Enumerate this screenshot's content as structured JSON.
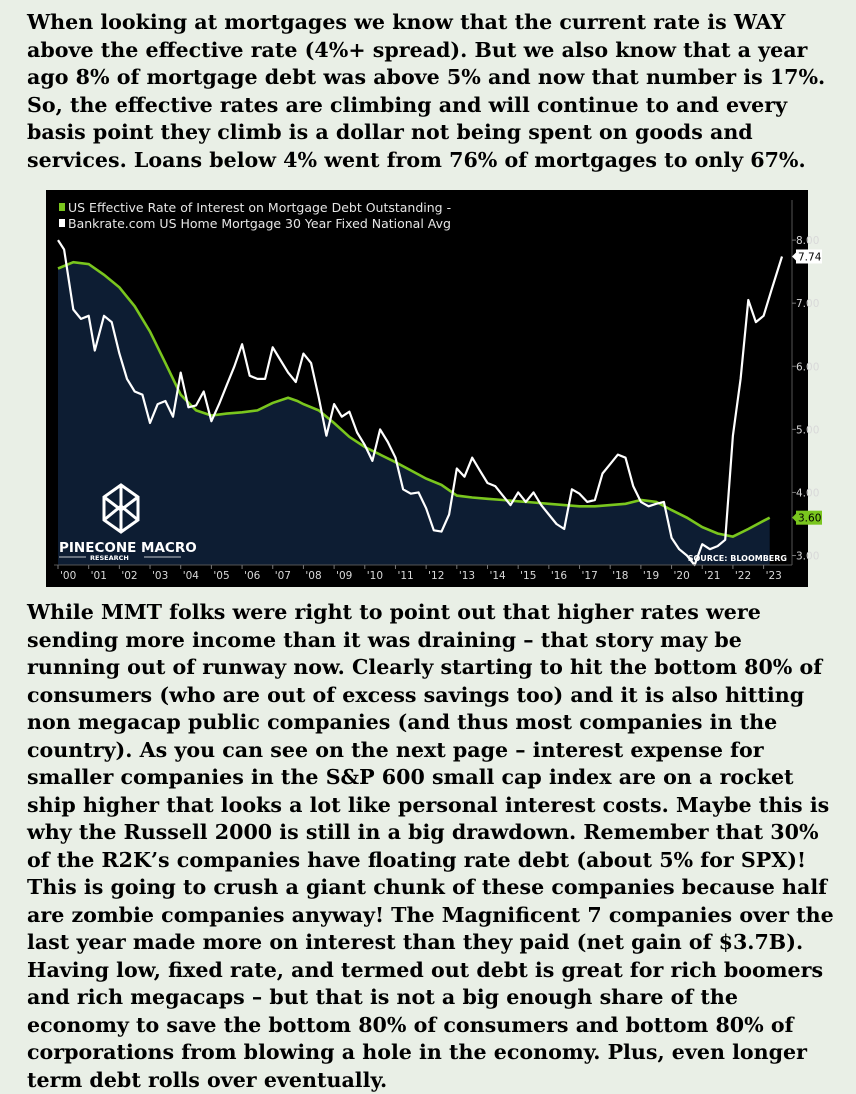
{
  "paragraphs": {
    "intro": "When looking at mortgages we know that the current rate is WAY above the effective rate (4%+ spread). But we also know that a year ago 8% of mortgage debt was above 5% and now that number is 17%. So, the effective rates are climbing and will continue to and every basis point they climb is a dollar not being spent on goods and services. Loans below 4% went from 76% of mortgages to only 67%.",
    "analysis": "While MMT folks were right to point out that higher rates were sending more income than it was draining – that story may be running out of runway now. Clearly starting to hit the bottom 80% of consumers (who are out of excess savings too) and it is also hitting non megacap public companies (and thus most companies in the country). As you can see on the next page – interest expense for smaller companies in the S&P 600 small cap index are on a rocket ship higher that looks a lot like personal interest costs. Maybe this is why the Russell 2000 is still in a big drawdown. Remember that 30% of the R2K’s companies have floating rate debt (about 5% for SPX)! This is going to crush a giant chunk of these companies because half are zombie companies anyway! The Magnificent 7 companies over the last year made more on interest than they paid (net gain of $3.7B). Having low, fixed rate, and termed out debt is great for rich boomers and rich megacaps – but that is not a big enough share of the economy to save the bottom 80% of consumers and bottom 80% of corporations from blowing a hole in the economy. Plus, even longer term debt rolls over eventually."
  },
  "chart_data": {
    "type": "line",
    "series": [
      {
        "name": "US Effective Rate of Interest on Mortgage Debt Outstanding -",
        "color": "#7ac61e",
        "style": "area",
        "points": [
          [
            2000.0,
            7.55
          ],
          [
            2000.5,
            7.65
          ],
          [
            2001.0,
            7.62
          ],
          [
            2001.5,
            7.45
          ],
          [
            2002.0,
            7.25
          ],
          [
            2002.5,
            6.95
          ],
          [
            2003.0,
            6.55
          ],
          [
            2003.5,
            6.05
          ],
          [
            2004.0,
            5.55
          ],
          [
            2004.5,
            5.3
          ],
          [
            2005.0,
            5.22
          ],
          [
            2005.5,
            5.25
          ],
          [
            2006.0,
            5.27
          ],
          [
            2006.5,
            5.3
          ],
          [
            2007.0,
            5.42
          ],
          [
            2007.5,
            5.5
          ],
          [
            2007.8,
            5.45
          ],
          [
            2008.0,
            5.4
          ],
          [
            2008.5,
            5.3
          ],
          [
            2009.0,
            5.1
          ],
          [
            2009.5,
            4.88
          ],
          [
            2010.0,
            4.72
          ],
          [
            2010.5,
            4.6
          ],
          [
            2011.0,
            4.48
          ],
          [
            2011.5,
            4.35
          ],
          [
            2012.0,
            4.22
          ],
          [
            2012.5,
            4.12
          ],
          [
            2013.0,
            3.95
          ],
          [
            2013.5,
            3.92
          ],
          [
            2014.0,
            3.9
          ],
          [
            2014.5,
            3.88
          ],
          [
            2015.0,
            3.86
          ],
          [
            2015.5,
            3.84
          ],
          [
            2016.0,
            3.82
          ],
          [
            2016.5,
            3.8
          ],
          [
            2017.0,
            3.78
          ],
          [
            2017.5,
            3.78
          ],
          [
            2018.0,
            3.8
          ],
          [
            2018.5,
            3.82
          ],
          [
            2019.0,
            3.88
          ],
          [
            2019.5,
            3.85
          ],
          [
            2020.0,
            3.72
          ],
          [
            2020.5,
            3.6
          ],
          [
            2021.0,
            3.45
          ],
          [
            2021.5,
            3.35
          ],
          [
            2022.0,
            3.3
          ],
          [
            2022.5,
            3.42
          ],
          [
            2023.0,
            3.55
          ],
          [
            2023.2,
            3.6
          ]
        ]
      },
      {
        "name": "Bankrate.com US Home Mortgage 30 Year Fixed National Avg",
        "color": "#ffffff",
        "style": "line",
        "points": [
          [
            2000.0,
            8.0
          ],
          [
            2000.2,
            7.85
          ],
          [
            2000.5,
            6.9
          ],
          [
            2000.75,
            6.75
          ],
          [
            2001.0,
            6.8
          ],
          [
            2001.2,
            6.25
          ],
          [
            2001.5,
            6.8
          ],
          [
            2001.75,
            6.7
          ],
          [
            2002.0,
            6.2
          ],
          [
            2002.25,
            5.8
          ],
          [
            2002.5,
            5.6
          ],
          [
            2002.75,
            5.55
          ],
          [
            2003.0,
            5.1
          ],
          [
            2003.25,
            5.4
          ],
          [
            2003.5,
            5.45
          ],
          [
            2003.75,
            5.2
          ],
          [
            2004.0,
            5.9
          ],
          [
            2004.25,
            5.35
          ],
          [
            2004.5,
            5.38
          ],
          [
            2004.75,
            5.6
          ],
          [
            2005.0,
            5.13
          ],
          [
            2005.25,
            5.4
          ],
          [
            2005.5,
            5.7
          ],
          [
            2005.75,
            6.0
          ],
          [
            2006.0,
            6.35
          ],
          [
            2006.25,
            5.85
          ],
          [
            2006.5,
            5.8
          ],
          [
            2006.75,
            5.8
          ],
          [
            2007.0,
            6.3
          ],
          [
            2007.25,
            6.1
          ],
          [
            2007.5,
            5.9
          ],
          [
            2007.75,
            5.75
          ],
          [
            2008.0,
            6.2
          ],
          [
            2008.25,
            6.05
          ],
          [
            2008.5,
            5.5
          ],
          [
            2008.75,
            4.9
          ],
          [
            2009.0,
            5.4
          ],
          [
            2009.25,
            5.2
          ],
          [
            2009.5,
            5.28
          ],
          [
            2009.75,
            4.95
          ],
          [
            2010.0,
            4.75
          ],
          [
            2010.25,
            4.5
          ],
          [
            2010.5,
            5.0
          ],
          [
            2010.75,
            4.8
          ],
          [
            2011.0,
            4.55
          ],
          [
            2011.25,
            4.05
          ],
          [
            2011.5,
            3.98
          ],
          [
            2011.75,
            4.0
          ],
          [
            2012.0,
            3.75
          ],
          [
            2012.25,
            3.4
          ],
          [
            2012.5,
            3.38
          ],
          [
            2012.75,
            3.65
          ],
          [
            2013.0,
            4.38
          ],
          [
            2013.25,
            4.25
          ],
          [
            2013.5,
            4.55
          ],
          [
            2013.75,
            4.35
          ],
          [
            2014.0,
            4.15
          ],
          [
            2014.25,
            4.1
          ],
          [
            2014.5,
            3.95
          ],
          [
            2014.75,
            3.8
          ],
          [
            2015.0,
            4.0
          ],
          [
            2015.25,
            3.85
          ],
          [
            2015.5,
            4.0
          ],
          [
            2015.75,
            3.8
          ],
          [
            2016.0,
            3.65
          ],
          [
            2016.25,
            3.5
          ],
          [
            2016.5,
            3.42
          ],
          [
            2016.75,
            4.05
          ],
          [
            2017.0,
            3.98
          ],
          [
            2017.25,
            3.85
          ],
          [
            2017.5,
            3.88
          ],
          [
            2017.75,
            4.3
          ],
          [
            2018.0,
            4.45
          ],
          [
            2018.25,
            4.6
          ],
          [
            2018.5,
            4.55
          ],
          [
            2018.75,
            4.1
          ],
          [
            2019.0,
            3.85
          ],
          [
            2019.25,
            3.78
          ],
          [
            2019.5,
            3.82
          ],
          [
            2019.75,
            3.85
          ],
          [
            2020.0,
            3.28
          ],
          [
            2020.25,
            3.1
          ],
          [
            2020.5,
            3.0
          ],
          [
            2020.75,
            2.85
          ],
          [
            2021.0,
            3.18
          ],
          [
            2021.25,
            3.1
          ],
          [
            2021.5,
            3.15
          ],
          [
            2021.75,
            3.25
          ],
          [
            2022.0,
            4.9
          ],
          [
            2022.25,
            5.8
          ],
          [
            2022.5,
            7.05
          ],
          [
            2022.75,
            6.7
          ],
          [
            2023.0,
            6.8
          ],
          [
            2023.25,
            7.2
          ],
          [
            2023.6,
            7.74
          ]
        ]
      }
    ],
    "x_range": [
      2000,
      2023.6
    ],
    "y_range": [
      2.85,
      8.35
    ],
    "y_ticks": [
      "8.00",
      "7.00",
      "6.00",
      "5.00",
      "4.00",
      "3.00"
    ],
    "y_tick_values": [
      8,
      7,
      6,
      5,
      4,
      3
    ],
    "x_ticks": [
      "'00",
      "'01",
      "'02",
      "'03",
      "'04",
      "'05",
      "'06",
      "'07",
      "'08",
      "'09",
      "'10",
      "'11",
      "'12",
      "'13",
      "'14",
      "'15",
      "'16",
      "'17",
      "'18",
      "'19",
      "'20",
      "'21",
      "'22",
      "'23"
    ],
    "last_value_labels": [
      "7.74",
      "3.60"
    ],
    "last_values": [
      7.74,
      3.6
    ],
    "source": "SOURCE: BLOOMBERG",
    "brand": {
      "name": "PINECONE MACRO",
      "tagline": "RESEARCH"
    },
    "colors": {
      "background": "#000000",
      "area_fill": "#0d1d33",
      "effective_line": "#7ac61e",
      "bankrate_line": "#ffffff"
    }
  }
}
